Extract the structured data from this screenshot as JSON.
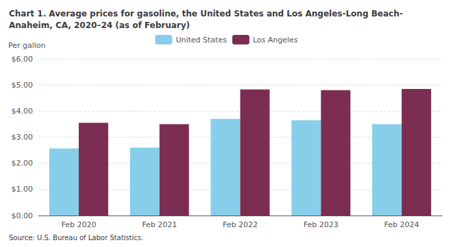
{
  "chart_data": {
    "type": "bar",
    "title": "Chart 1. Average prices for gasoline, the United States and Los Angeles-Long Beach-\nAnaheim, CA, 2020–24 (as of February)",
    "ylabel": "Per gallon",
    "annotations": [
      "Source: U.S. Bureau of Labor Statistics."
    ],
    "categories": [
      "Feb 2020",
      "Feb 2021",
      "Feb 2022",
      "Feb 2023",
      "Feb 2024"
    ],
    "series": [
      {
        "name": "United States",
        "color": "#87CEEB",
        "values": [
          2.57,
          2.6,
          3.7,
          3.65,
          3.5
        ]
      },
      {
        "name": "Los Angeles",
        "color": "#7B2D52",
        "values": [
          3.55,
          3.5,
          4.83,
          4.8,
          4.85
        ]
      }
    ],
    "ylim": [
      0,
      6.0
    ],
    "yticks": [
      {
        "value": 0.0,
        "label": "$0.00"
      },
      {
        "value": 1.0,
        "label": "$1.00"
      },
      {
        "value": 2.0,
        "label": "$2.00"
      },
      {
        "value": 3.0,
        "label": "$3.00"
      },
      {
        "value": 4.0,
        "label": "$4.00"
      },
      {
        "value": 5.0,
        "label": "$5.00"
      },
      {
        "value": 6.0,
        "label": "$6.00"
      }
    ],
    "grid": true,
    "legend": "top"
  }
}
